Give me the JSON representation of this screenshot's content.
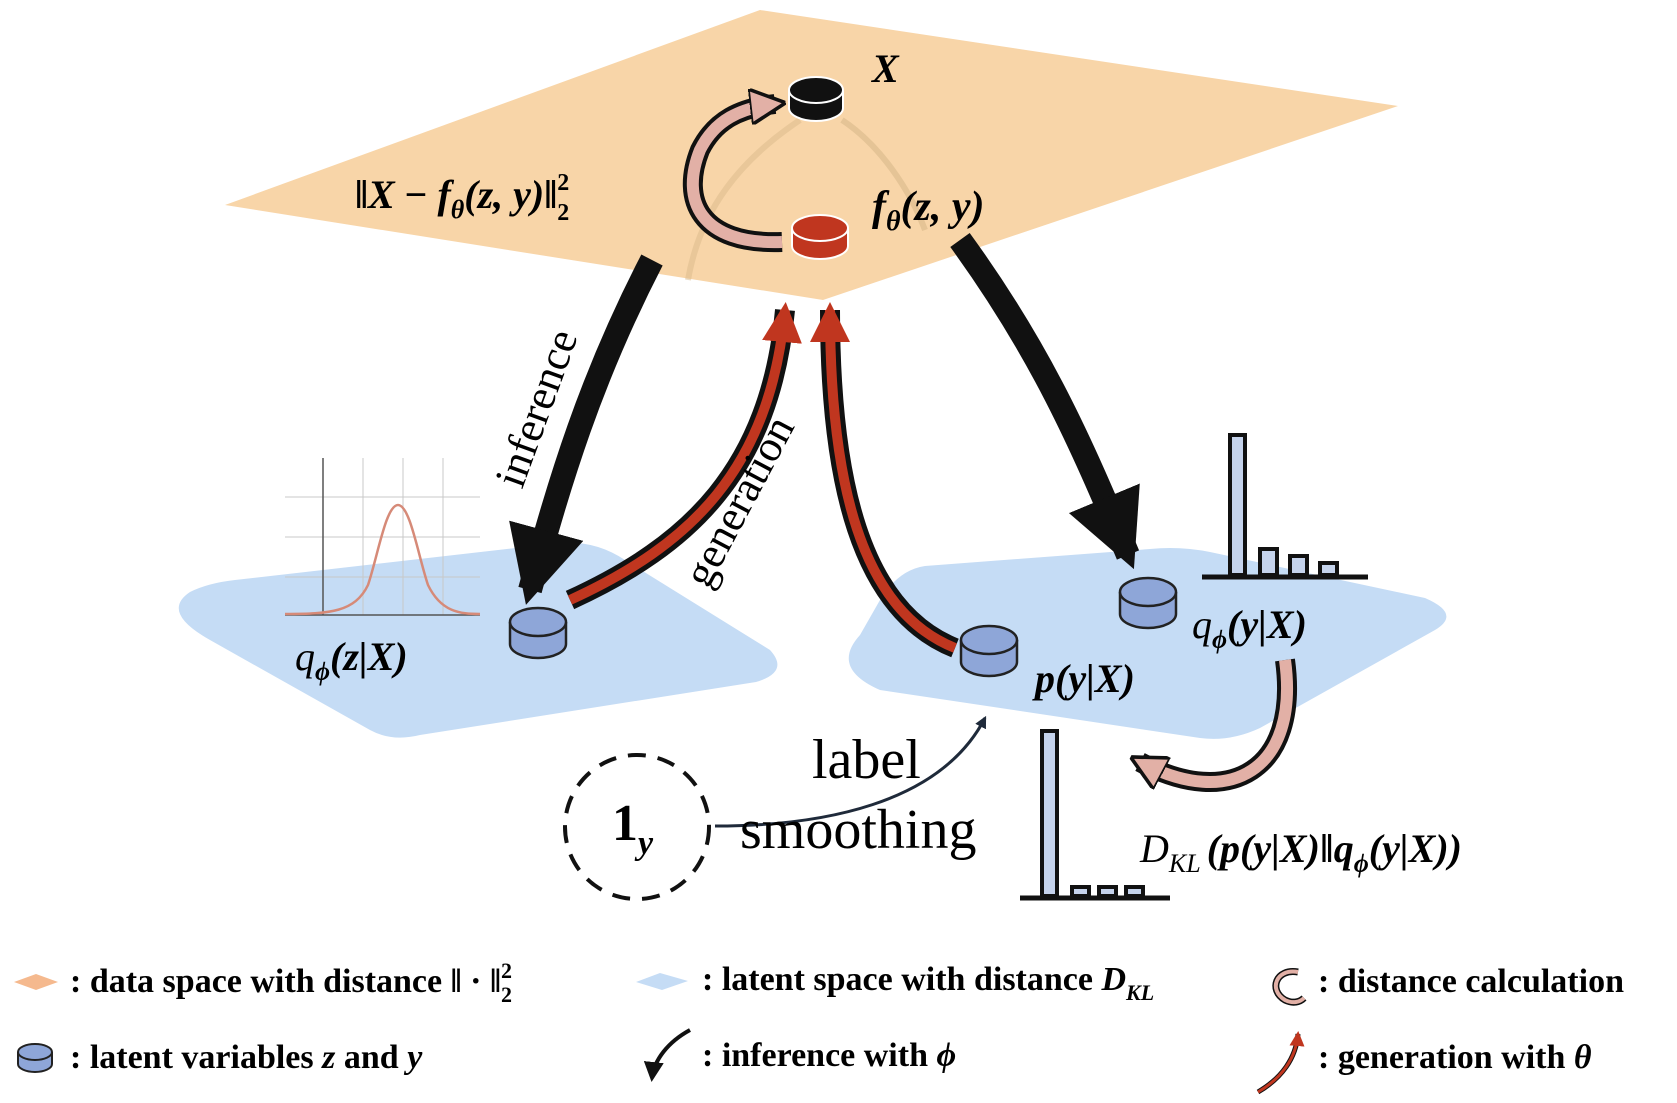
{
  "labels": {
    "x": "X",
    "f_theta": "f",
    "f_theta_sub": "θ",
    "f_theta_args": "(z, y)",
    "recon_open": "‖",
    "recon_x": "X",
    "recon_minus": " − ",
    "recon_f": "f",
    "recon_sub": "θ",
    "recon_args": "(z, y)",
    "recon_close": "‖",
    "recon_pow": "2",
    "recon_base": "2",
    "inference": "inference",
    "generation": "generation",
    "q_z_q": "q",
    "q_z_phi": "ϕ",
    "q_z_args": "(z|X)",
    "q_y_q": "q",
    "q_y_phi": "ϕ",
    "q_y_args": "(y|X)",
    "p_y": "p(y|X)",
    "label": "label",
    "smoothing": "smoothing",
    "one": "1",
    "one_sub": "y",
    "dkl_d": "D",
    "dkl_sub": "KL",
    "dkl_args": "(p(y|X)‖q",
    "dkl_phi": "ϕ",
    "dkl_tail": "(y|X))"
  },
  "legend": {
    "data_space": ": data space with distance ‖ · ‖",
    "data_space_pow": "2",
    "data_space_base": "2",
    "latent_space": ": latent space with distance ",
    "latent_space_d": "D",
    "latent_space_sub": "KL",
    "distance_calc": ": distance calculation",
    "latent_vars_pre": ": latent variables ",
    "latent_vars_z": "z",
    "latent_vars_mid": " and ",
    "latent_vars_y": "y",
    "inference_pre": ": inference with ",
    "inference_sym": "ϕ",
    "generation_pre": ": generation with ",
    "generation_sym": "θ"
  },
  "colors": {
    "data_plane": "#f8d5a8",
    "latent_plane": "#c5dcf5",
    "latent_variable": "#8ea6d8",
    "observed": "#111111",
    "reconstruction": "#c0361f",
    "distance_arrow": "#e2b0a6",
    "generation_arrow": "#c0361f",
    "gaussian_curve": "#d68a78"
  },
  "icons": {
    "distance": "curved-return-arrow-icon",
    "latent": "cylinder-icon",
    "inference": "black-curved-arrow-icon",
    "generation": "red-curved-arrow-icon"
  }
}
